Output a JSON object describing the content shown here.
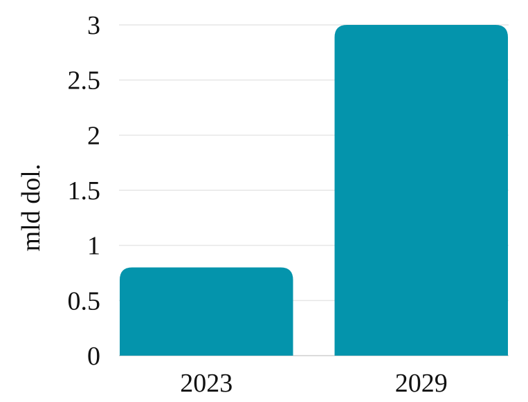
{
  "chart_data": {
    "type": "bar",
    "categories": [
      "2023",
      "2029"
    ],
    "values": [
      0.8,
      3.0
    ],
    "ylabel": "mld dol.",
    "xlabel": "",
    "ylim": [
      0,
      3
    ],
    "yticks": [
      "0",
      "0.5",
      "1",
      "1.5",
      "2",
      "2.5",
      "3"
    ],
    "grid": true,
    "legend": "none",
    "bar_color": "#0494ac"
  }
}
